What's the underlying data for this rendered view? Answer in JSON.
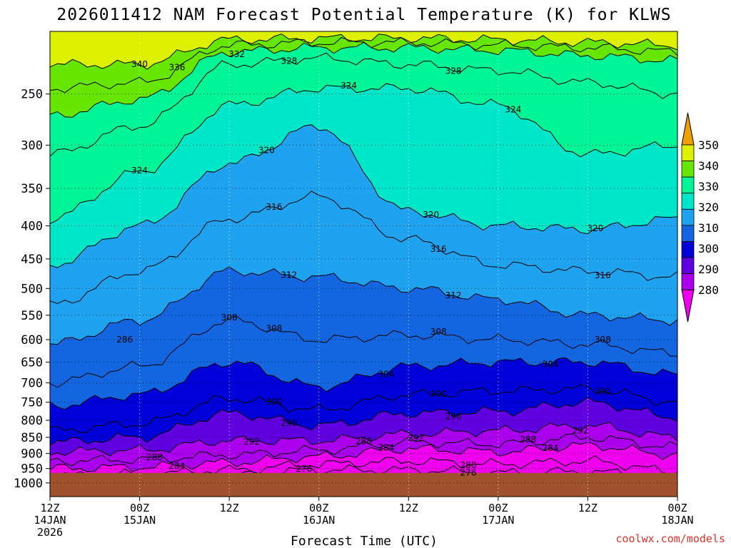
{
  "title": "2026011412 NAM Forecast Potential Temperature (K) for KLWS",
  "credit": "coolwx.com/models",
  "chart_data": {
    "type": "heatmap",
    "title": "2026011412 NAM Forecast Potential Temperature (K) for KLWS",
    "xlabel": "Forecast Time (UTC)",
    "ylabel": "",
    "x_ticks": [
      {
        "hour": 0,
        "label": "12Z",
        "date": "14JAN",
        "year": "2026"
      },
      {
        "hour": 12,
        "label": "00Z",
        "date": "15JAN",
        "year": ""
      },
      {
        "hour": 24,
        "label": "12Z",
        "date": "",
        "year": ""
      },
      {
        "hour": 36,
        "label": "00Z",
        "date": "16JAN",
        "year": ""
      },
      {
        "hour": 48,
        "label": "12Z",
        "date": "",
        "year": ""
      },
      {
        "hour": 60,
        "label": "00Z",
        "date": "17JAN",
        "year": ""
      },
      {
        "hour": 72,
        "label": "12Z",
        "date": "",
        "year": ""
      },
      {
        "hour": 84,
        "label": "00Z",
        "date": "18JAN",
        "year": ""
      }
    ],
    "xlim": [
      0,
      84
    ],
    "y_ticks": [
      250,
      300,
      350,
      400,
      450,
      500,
      550,
      600,
      650,
      700,
      750,
      800,
      850,
      900,
      950,
      1000
    ],
    "ylim": [
      1050,
      200
    ],
    "y_scale": "log",
    "grid": true,
    "surface_pressure_hPa": 965,
    "colorbar": {
      "levels": [
        280,
        290,
        300,
        310,
        320,
        330,
        340,
        350
      ],
      "colors": [
        "#ee00ee",
        "#aa00ee",
        "#6000e0",
        "#0000d8",
        "#1466e0",
        "#1fa2f0",
        "#00e6c8",
        "#00f596",
        "#66e600",
        "#dcf000",
        "#eea000"
      ],
      "extend": "both",
      "placement": "right"
    },
    "ground_color": "#a0522d",
    "time_hours": [
      0,
      12,
      24,
      36,
      48,
      60,
      72,
      84
    ],
    "isentropes": [
      {
        "theta": 276,
        "pressure": [
          990,
          985,
          975,
          955,
          955,
          965,
          960,
          985
        ]
      },
      {
        "theta": 280,
        "pressure": [
          975,
          970,
          955,
          935,
          925,
          935,
          925,
          960
        ]
      },
      {
        "theta": 284,
        "pressure": [
          950,
          945,
          930,
          910,
          885,
          895,
          875,
          905
        ]
      },
      {
        "theta": 288,
        "pressure": [
          925,
          920,
          905,
          890,
          865,
          870,
          850,
          880
        ]
      },
      {
        "theta": 292,
        "pressure": [
          895,
          890,
          860,
          860,
          840,
          830,
          815,
          850
        ]
      },
      {
        "theta": 296,
        "pressure": [
          865,
          850,
          780,
          815,
          780,
          775,
          750,
          790
        ]
      },
      {
        "theta": 300,
        "pressure": [
          830,
          810,
          740,
          770,
          730,
          720,
          715,
          750
        ]
      },
      {
        "theta": 304,
        "pressure": [
          760,
          730,
          650,
          710,
          660,
          650,
          650,
          680
        ]
      },
      {
        "theta": 308,
        "pressure": [
          700,
          660,
          560,
          600,
          590,
          600,
          610,
          630
        ]
      },
      {
        "theta": 312,
        "pressure": [
          610,
          560,
          470,
          480,
          500,
          520,
          550,
          560
        ]
      },
      {
        "theta": 316,
        "pressure": [
          530,
          470,
          390,
          360,
          420,
          460,
          470,
          480
        ]
      },
      {
        "theta": 320,
        "pressure": [
          460,
          400,
          320,
          280,
          380,
          400,
          405,
          390
        ]
      },
      {
        "theta": 324,
        "pressure": [
          390,
          330,
          260,
          245,
          245,
          260,
          310,
          300
        ]
      },
      {
        "theta": 328,
        "pressure": [
          310,
          280,
          225,
          220,
          225,
          230,
          240,
          250
        ]
      },
      {
        "theta": 332,
        "pressure": [
          270,
          255,
          215,
          212,
          212,
          214,
          218,
          222
        ]
      },
      {
        "theta": 336,
        "pressure": [
          245,
          240,
          210,
          208,
          208,
          210,
          212,
          215
        ]
      },
      {
        "theta": 340,
        "pressure": [
          225,
          225,
          206,
          205,
          205,
          206,
          208,
          210
        ]
      }
    ],
    "annotations": [
      "340",
      "336",
      "332",
      "328",
      "324",
      "324",
      "328",
      "324",
      "320",
      "320",
      "316",
      "316",
      "320",
      "312",
      "316",
      "312",
      "308",
      "308",
      "308",
      "304",
      "308",
      "304",
      "300",
      "300",
      "296",
      "300",
      "296",
      "292",
      "292",
      "288",
      "284",
      "286",
      "292",
      "288",
      "284",
      "288",
      "280",
      "284",
      "276",
      "276"
    ]
  }
}
